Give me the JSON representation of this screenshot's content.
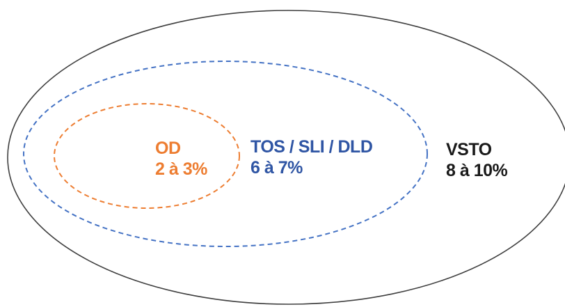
{
  "colors": {
    "outer_stroke": "#3f3f3f",
    "middle_stroke": "#4472c4",
    "inner_stroke": "#ed7d31",
    "outer_text": "#1a1a1a",
    "middle_text": "#2f55a4",
    "inner_text": "#ed7d31"
  },
  "sets": {
    "outer": {
      "name": "VSTO",
      "value": "8 à 10%",
      "line_style": "solid"
    },
    "middle": {
      "name": "TOS / SLI / DLD",
      "value": "6 à 7%",
      "line_style": "dashed"
    },
    "inner": {
      "name": "OD",
      "value": "2 à 3%",
      "line_style": "dashed"
    }
  }
}
